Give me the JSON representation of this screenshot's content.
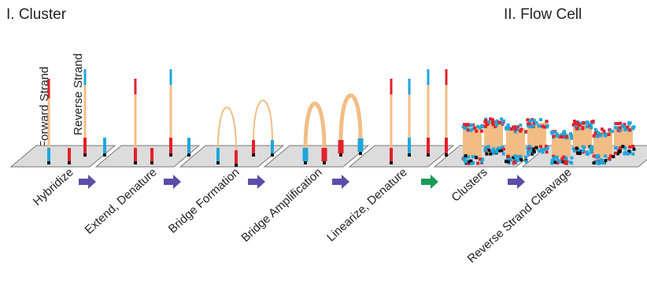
{
  "headings": {
    "cluster": "I. Cluster",
    "flow_cell": "II. Flow Cell"
  },
  "strand_labels": {
    "forward": "Forward Strand",
    "reverse": "Reverse Strand"
  },
  "steps": [
    "Hybridize",
    "Extend, Denature",
    "Bridge Formation",
    "Bridge Amplification",
    "Linearize, Denature",
    "Clusters",
    "Reverse Strand Cleavage"
  ]
}
